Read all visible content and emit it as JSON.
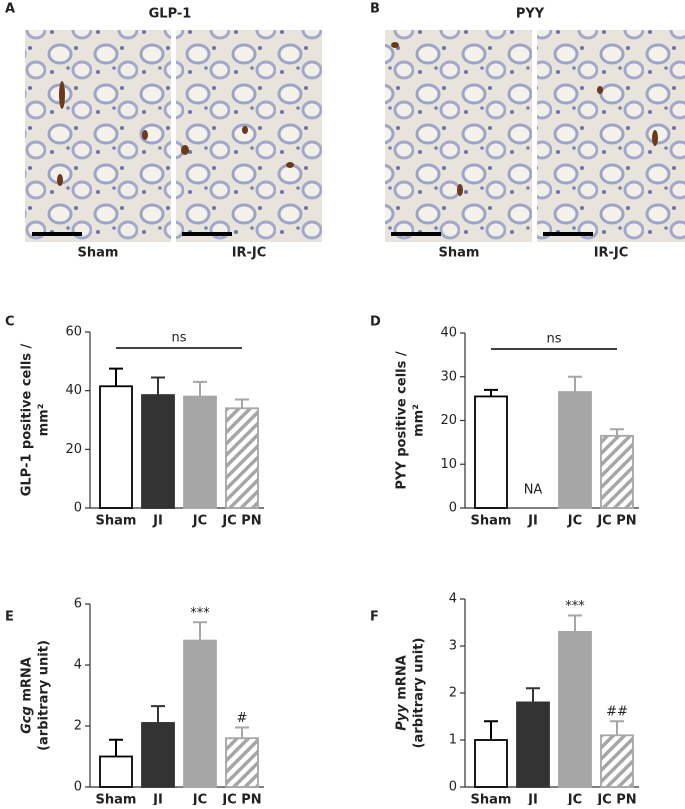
{
  "panels": [
    {
      "letter": "A",
      "title": "GLP-1",
      "images": [
        "Sham",
        "IR-JC"
      ]
    },
    {
      "letter": "B",
      "title": "PYY",
      "images": [
        "Sham",
        "IR-JC"
      ]
    }
  ],
  "chart_data": [
    {
      "type": "bar",
      "letter": "C",
      "ylabel": [
        "GLP-1 positive cells /",
        "mm²"
      ],
      "categories": [
        "Sham",
        "JI",
        "JC",
        "JC PN"
      ],
      "values": [
        41.5,
        38.5,
        38,
        34
      ],
      "errors": [
        6,
        6,
        5,
        3
      ],
      "colors": [
        "#ffffff",
        "#333333",
        "#a6a6a6",
        "#a6a6a6"
      ],
      "hatched": [
        false,
        false,
        false,
        true
      ],
      "annotation": "ns",
      "ylim": [
        0,
        60
      ],
      "yticks": [
        0,
        20,
        40,
        60
      ]
    },
    {
      "type": "bar",
      "letter": "D",
      "ylabel": [
        "PYY positive cells /",
        "mm²"
      ],
      "categories": [
        "Sham",
        "JI",
        "JC",
        "JC PN"
      ],
      "values": [
        25.5,
        null,
        26.5,
        16.5
      ],
      "errors": [
        1.5,
        null,
        3.5,
        1.5
      ],
      "colors": [
        "#ffffff",
        "#333333",
        "#a6a6a6",
        "#a6a6a6"
      ],
      "hatched": [
        false,
        false,
        false,
        true
      ],
      "bar_labels": [
        null,
        "NA",
        null,
        null
      ],
      "annotation": "ns",
      "ylim": [
        0,
        40
      ],
      "yticks": [
        0,
        10,
        20,
        30,
        40
      ]
    },
    {
      "type": "bar",
      "letter": "E",
      "ylabel_italic": "Gcg",
      "ylabel": [
        " mRNA",
        "(arbitrary unit)"
      ],
      "categories": [
        "Sham",
        "JI",
        "JC",
        "JC PN"
      ],
      "values": [
        1.0,
        2.1,
        4.8,
        1.6
      ],
      "errors": [
        0.55,
        0.55,
        0.6,
        0.35
      ],
      "colors": [
        "#ffffff",
        "#333333",
        "#a6a6a6",
        "#a6a6a6"
      ],
      "hatched": [
        false,
        false,
        false,
        true
      ],
      "bar_labels": [
        null,
        null,
        "***",
        "#"
      ],
      "ylim": [
        0,
        6
      ],
      "yticks": [
        0,
        2,
        4,
        6
      ]
    },
    {
      "type": "bar",
      "letter": "F",
      "ylabel_italic": "Pyy",
      "ylabel": [
        " mRNA",
        "(arbitrary unit)"
      ],
      "categories": [
        "Sham",
        "JI",
        "JC",
        "JC PN"
      ],
      "values": [
        1.0,
        1.8,
        3.3,
        1.1
      ],
      "errors": [
        0.4,
        0.3,
        0.35,
        0.3
      ],
      "colors": [
        "#ffffff",
        "#333333",
        "#a6a6a6",
        "#a6a6a6"
      ],
      "hatched": [
        false,
        false,
        false,
        true
      ],
      "bar_labels": [
        null,
        null,
        "***",
        "##"
      ],
      "ylim": [
        0,
        4
      ],
      "yticks": [
        0,
        1,
        2,
        3,
        4
      ]
    }
  ]
}
